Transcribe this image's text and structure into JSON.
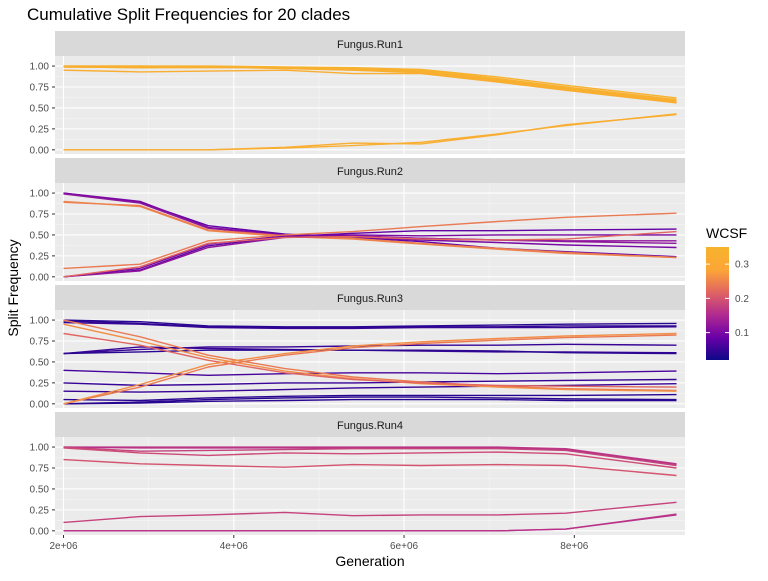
{
  "chart_data": {
    "type": "line",
    "title": "Cumulative Split Frequencies for 20 clades",
    "xlabel": "Generation",
    "ylabel": "Split Frequency",
    "xlim": [
      1900000,
      9300000
    ],
    "ylim": [
      -0.05,
      1.12
    ],
    "x_ticks": [
      2000000,
      4000000,
      6000000,
      8000000
    ],
    "x_tick_labels": [
      "2e+06",
      "4e+06",
      "6e+06",
      "8e+06"
    ],
    "y_ticks": [
      0,
      0.25,
      0.5,
      0.75,
      1
    ],
    "y_tick_labels": [
      "0.00",
      "0.25",
      "0.50",
      "0.75",
      "1.00"
    ],
    "grid": true,
    "x": [
      2000000,
      2900000,
      3700000,
      4600000,
      5400000,
      6200000,
      7100000,
      7900000,
      9200000
    ],
    "legend": {
      "title": "WCSF",
      "placement": "right",
      "min": 0.02,
      "max": 0.35,
      "ticks": [
        0.1,
        0.2,
        0.3
      ],
      "tick_labels": [
        "0.1",
        "0.2",
        "0.3"
      ],
      "colormap": [
        "#0d0887",
        "#6a00a8",
        "#b12a90",
        "#e16462",
        "#fca636",
        "#f6b32c"
      ]
    },
    "panels": [
      {
        "name": "Fungus.Run1",
        "series": [
          {
            "wcsf": 0.34,
            "values": [
              1.0,
              1.0,
              1.0,
              0.99,
              0.98,
              0.96,
              0.87,
              0.77,
              0.62
            ]
          },
          {
            "wcsf": 0.34,
            "values": [
              0.99,
              0.99,
              0.99,
              0.98,
              0.97,
              0.95,
              0.85,
              0.75,
              0.6
            ]
          },
          {
            "wcsf": 0.34,
            "values": [
              0.99,
              0.98,
              0.99,
              0.98,
              0.96,
              0.94,
              0.84,
              0.74,
              0.59
            ]
          },
          {
            "wcsf": 0.33,
            "values": [
              1.0,
              1.0,
              0.99,
              0.97,
              0.95,
              0.93,
              0.83,
              0.73,
              0.58
            ]
          },
          {
            "wcsf": 0.33,
            "values": [
              0.99,
              0.98,
              0.98,
              0.98,
              0.95,
              0.92,
              0.82,
              0.72,
              0.57
            ]
          },
          {
            "wcsf": 0.32,
            "values": [
              0.95,
              0.93,
              0.94,
              0.95,
              0.91,
              0.91,
              0.81,
              0.71,
              0.56
            ]
          },
          {
            "wcsf": 0.33,
            "values": [
              0.0,
              0.0,
              0.0,
              0.02,
              0.05,
              0.09,
              0.19,
              0.29,
              0.43
            ]
          },
          {
            "wcsf": 0.32,
            "values": [
              0.0,
              0.0,
              0.0,
              0.03,
              0.08,
              0.07,
              0.18,
              0.3,
              0.42
            ]
          }
        ]
      },
      {
        "name": "Fungus.Run2",
        "series": [
          {
            "wcsf": 0.08,
            "values": [
              1.0,
              0.89,
              0.61,
              0.51,
              0.47,
              0.42,
              0.34,
              0.3,
              0.24
            ]
          },
          {
            "wcsf": 0.1,
            "values": [
              1.0,
              0.9,
              0.59,
              0.5,
              0.48,
              0.44,
              0.41,
              0.38,
              0.35
            ]
          },
          {
            "wcsf": 0.12,
            "values": [
              0.99,
              0.88,
              0.58,
              0.49,
              0.49,
              0.46,
              0.44,
              0.42,
              0.4
            ]
          },
          {
            "wcsf": 0.24,
            "values": [
              0.89,
              0.85,
              0.56,
              0.49,
              0.46,
              0.4,
              0.34,
              0.29,
              0.23
            ]
          },
          {
            "wcsf": 0.25,
            "values": [
              0.9,
              0.84,
              0.55,
              0.48,
              0.45,
              0.39,
              0.33,
              0.28,
              0.23
            ]
          },
          {
            "wcsf": 0.08,
            "values": [
              0.0,
              0.08,
              0.37,
              0.48,
              0.52,
              0.55,
              0.55,
              0.56,
              0.57
            ]
          },
          {
            "wcsf": 0.1,
            "values": [
              0.0,
              0.1,
              0.39,
              0.49,
              0.5,
              0.49,
              0.5,
              0.5,
              0.5
            ]
          },
          {
            "wcsf": 0.12,
            "values": [
              0.0,
              0.07,
              0.35,
              0.47,
              0.48,
              0.46,
              0.44,
              0.43,
              0.43
            ]
          },
          {
            "wcsf": 0.24,
            "values": [
              0.1,
              0.15,
              0.43,
              0.5,
              0.54,
              0.6,
              0.66,
              0.71,
              0.76
            ]
          },
          {
            "wcsf": 0.22,
            "values": [
              0.0,
              0.12,
              0.4,
              0.47,
              0.48,
              0.45,
              0.44,
              0.45,
              0.54
            ]
          }
        ]
      },
      {
        "name": "Fungus.Run3",
        "series": [
          {
            "wcsf": 0.04,
            "values": [
              1.0,
              0.98,
              0.93,
              0.92,
              0.92,
              0.93,
              0.94,
              0.95,
              0.96
            ]
          },
          {
            "wcsf": 0.04,
            "values": [
              0.99,
              0.96,
              0.92,
              0.91,
              0.91,
              0.92,
              0.92,
              0.93,
              0.93
            ]
          },
          {
            "wcsf": 0.05,
            "values": [
              0.97,
              0.95,
              0.91,
              0.9,
              0.9,
              0.91,
              0.91,
              0.91,
              0.92
            ]
          },
          {
            "wcsf": 0.05,
            "values": [
              0.6,
              0.65,
              0.68,
              0.68,
              0.69,
              0.7,
              0.7,
              0.71,
              0.7
            ]
          },
          {
            "wcsf": 0.05,
            "values": [
              0.6,
              0.68,
              0.66,
              0.65,
              0.64,
              0.63,
              0.62,
              0.62,
              0.61
            ]
          },
          {
            "wcsf": 0.04,
            "values": [
              0.6,
              0.62,
              0.64,
              0.64,
              0.64,
              0.64,
              0.63,
              0.61,
              0.6
            ]
          },
          {
            "wcsf": 0.06,
            "values": [
              0.4,
              0.37,
              0.34,
              0.36,
              0.37,
              0.37,
              0.36,
              0.37,
              0.39
            ]
          },
          {
            "wcsf": 0.05,
            "values": [
              0.25,
              0.22,
              0.23,
              0.25,
              0.25,
              0.26,
              0.27,
              0.28,
              0.29
            ]
          },
          {
            "wcsf": 0.05,
            "values": [
              0.15,
              0.14,
              0.15,
              0.17,
              0.19,
              0.2,
              0.21,
              0.22,
              0.24
            ]
          },
          {
            "wcsf": 0.04,
            "values": [
              0.05,
              0.04,
              0.07,
              0.09,
              0.1,
              0.1,
              0.1,
              0.1,
              0.11
            ]
          },
          {
            "wcsf": 0.04,
            "values": [
              0.0,
              0.02,
              0.05,
              0.07,
              0.08,
              0.08,
              0.07,
              0.06,
              0.05
            ]
          },
          {
            "wcsf": 0.04,
            "values": [
              0.0,
              0.01,
              0.03,
              0.04,
              0.05,
              0.05,
              0.05,
              0.04,
              0.04
            ]
          },
          {
            "wcsf": 0.24,
            "values": [
              1.0,
              0.8,
              0.58,
              0.42,
              0.32,
              0.26,
              0.21,
              0.18,
              0.16
            ]
          },
          {
            "wcsf": 0.26,
            "values": [
              0.95,
              0.75,
              0.55,
              0.39,
              0.3,
              0.24,
              0.2,
              0.17,
              0.15
            ]
          },
          {
            "wcsf": 0.22,
            "values": [
              0.84,
              0.7,
              0.52,
              0.37,
              0.29,
              0.25,
              0.22,
              0.21,
              0.2
            ]
          },
          {
            "wcsf": 0.24,
            "values": [
              0.0,
              0.2,
              0.44,
              0.58,
              0.67,
              0.72,
              0.76,
              0.79,
              0.82
            ]
          },
          {
            "wcsf": 0.26,
            "values": [
              0.0,
              0.23,
              0.47,
              0.6,
              0.69,
              0.74,
              0.78,
              0.81,
              0.84
            ]
          }
        ]
      },
      {
        "name": "Fungus.Run4",
        "series": [
          {
            "wcsf": 0.17,
            "values": [
              1.0,
              1.0,
              1.0,
              1.0,
              1.0,
              1.0,
              1.0,
              0.98,
              0.8
            ]
          },
          {
            "wcsf": 0.16,
            "values": [
              1.0,
              0.99,
              0.99,
              0.99,
              0.99,
              0.99,
              0.99,
              0.97,
              0.79
            ]
          },
          {
            "wcsf": 0.18,
            "values": [
              1.0,
              0.95,
              0.96,
              0.97,
              0.98,
              0.98,
              0.98,
              0.96,
              0.78
            ]
          },
          {
            "wcsf": 0.19,
            "values": [
              0.99,
              0.93,
              0.9,
              0.93,
              0.92,
              0.93,
              0.94,
              0.92,
              0.75
            ]
          },
          {
            "wcsf": 0.2,
            "values": [
              0.85,
              0.8,
              0.78,
              0.76,
              0.79,
              0.78,
              0.79,
              0.78,
              0.66
            ]
          },
          {
            "wcsf": 0.18,
            "values": [
              0.1,
              0.17,
              0.19,
              0.22,
              0.18,
              0.19,
              0.19,
              0.21,
              0.34
            ]
          },
          {
            "wcsf": 0.17,
            "values": [
              0.0,
              0.0,
              0.0,
              0.0,
              0.0,
              0.0,
              0.0,
              0.02,
              0.2
            ]
          },
          {
            "wcsf": 0.16,
            "values": [
              0.0,
              0.0,
              0.0,
              0.0,
              0.0,
              0.0,
              0.0,
              0.02,
              0.19
            ]
          }
        ]
      }
    ]
  }
}
